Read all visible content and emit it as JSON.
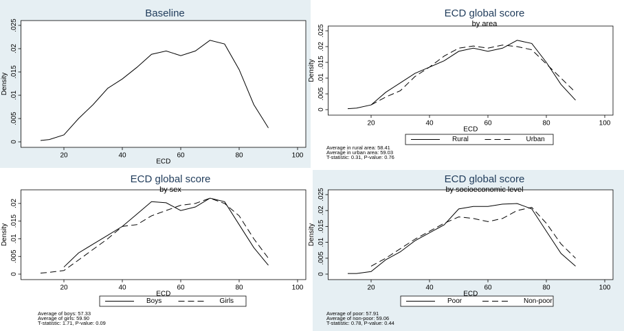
{
  "chart_data": [
    {
      "type": "line",
      "title": "Baseline",
      "x_label": "ECD",
      "y_label": "Density",
      "x": [
        12,
        15,
        20,
        25,
        30,
        35,
        40,
        45,
        50,
        55,
        60,
        65,
        70,
        75,
        80,
        85,
        90
      ],
      "series": [
        {
          "color": "#000000",
          "dash": "solid",
          "values": [
            0.0003,
            0.0005,
            0.0015,
            0.005,
            0.008,
            0.0115,
            0.0135,
            0.016,
            0.0188,
            0.0195,
            0.0185,
            0.0195,
            0.0218,
            0.021,
            0.0155,
            0.008,
            0.003
          ]
        }
      ],
      "xlim": [
        10,
        100
      ],
      "xticks": [
        20,
        40,
        60,
        80,
        100
      ],
      "ylim": [
        0,
        0.025
      ],
      "yticks": [
        {
          "value": 0,
          "label": "0"
        },
        {
          "value": 0.005,
          "label": ".005"
        },
        {
          "value": 0.01,
          "label": ".01"
        },
        {
          "value": 0.015,
          "label": ".015"
        },
        {
          "value": 0.02,
          "label": ".02"
        },
        {
          "value": 0.025,
          "label": ".025"
        }
      ]
    },
    {
      "type": "line",
      "title": "ECD global score",
      "subtitle": "by area",
      "x_label": "ECD",
      "y_label": "Density",
      "x": [
        12,
        15,
        20,
        25,
        30,
        35,
        40,
        45,
        50,
        55,
        60,
        65,
        70,
        75,
        80,
        85,
        90
      ],
      "series": [
        {
          "name": "Rural",
          "color": "#000000",
          "dash": "solid",
          "values": [
            0.0003,
            0.0005,
            0.0015,
            0.0055,
            0.0085,
            0.0115,
            0.0135,
            0.0155,
            0.0185,
            0.0195,
            0.0185,
            0.0195,
            0.022,
            0.021,
            0.015,
            0.008,
            0.003
          ]
        },
        {
          "name": "Urban",
          "color": "#000000",
          "dash": "dashed",
          "values": [
            null,
            null,
            0.0015,
            0.004,
            0.006,
            0.0105,
            0.0135,
            0.017,
            0.0195,
            0.0202,
            0.0195,
            0.0205,
            0.02,
            0.019,
            0.0145,
            0.01,
            0.0055
          ]
        }
      ],
      "xlim": [
        10,
        100
      ],
      "xticks": [
        20,
        40,
        60,
        80,
        100
      ],
      "ylim": [
        0,
        0.025
      ],
      "yticks": [
        {
          "value": 0,
          "label": "0"
        },
        {
          "value": 0.005,
          "label": ".005"
        },
        {
          "value": 0.01,
          "label": ".01"
        },
        {
          "value": 0.015,
          "label": ".015"
        },
        {
          "value": 0.02,
          "label": ".02"
        },
        {
          "value": 0.025,
          "label": ".025"
        }
      ],
      "notes": [
        "Average in rural area: 58.41",
        "Average in urban area: 59.03",
        "T-statistic: 0.31, P-value: 0.76"
      ]
    },
    {
      "type": "line",
      "title": "ECD global score",
      "subtitle": "by sex",
      "x_label": "ECD",
      "y_label": "Density",
      "x": [
        12,
        15,
        20,
        25,
        30,
        35,
        40,
        45,
        50,
        55,
        60,
        65,
        70,
        75,
        80,
        85,
        90
      ],
      "series": [
        {
          "name": "Boys",
          "color": "#000000",
          "dash": "solid",
          "values": [
            null,
            null,
            0.002,
            0.006,
            0.0085,
            0.011,
            0.0135,
            0.017,
            0.0205,
            0.0202,
            0.018,
            0.019,
            0.0215,
            0.0205,
            0.014,
            0.0075,
            0.0025
          ]
        },
        {
          "name": "Girls",
          "color": "#000000",
          "dash": "dashed",
          "values": [
            0.0003,
            0.0005,
            0.001,
            0.004,
            0.007,
            0.01,
            0.0135,
            0.014,
            0.0165,
            0.018,
            0.0195,
            0.02,
            0.0215,
            0.02,
            0.0165,
            0.01,
            0.0045
          ]
        }
      ],
      "xlim": [
        10,
        100
      ],
      "xticks": [
        20,
        40,
        60,
        80,
        100
      ],
      "ylim": [
        0,
        0.0225
      ],
      "yticks": [
        {
          "value": 0,
          "label": "0"
        },
        {
          "value": 0.005,
          "label": ".005"
        },
        {
          "value": 0.01,
          "label": ".01"
        },
        {
          "value": 0.015,
          "label": ".015"
        },
        {
          "value": 0.02,
          "label": ".02"
        }
      ],
      "notes": [
        "Average of boys: 57.33",
        "Average of girls: 59.90",
        "T-statistic: 1.71, P-value: 0.09"
      ]
    },
    {
      "type": "line",
      "title": "ECD global score",
      "subtitle": "by socioeconomic level",
      "x_label": "ECD",
      "y_label": "Density",
      "x": [
        12,
        15,
        20,
        25,
        30,
        35,
        40,
        45,
        50,
        55,
        60,
        65,
        70,
        75,
        80,
        85,
        90
      ],
      "series": [
        {
          "name": "Poor",
          "color": "#000000",
          "dash": "solid",
          "values": [
            0.0002,
            0.0002,
            0.0008,
            0.0045,
            0.007,
            0.0105,
            0.013,
            0.0155,
            0.0205,
            0.0213,
            0.0213,
            0.022,
            0.0222,
            0.0205,
            0.0135,
            0.0065,
            0.0025
          ]
        },
        {
          "name": "Non-poor",
          "color": "#000000",
          "dash": "dashed",
          "values": [
            null,
            null,
            0.0025,
            0.005,
            0.008,
            0.011,
            0.0135,
            0.016,
            0.018,
            0.0175,
            0.0165,
            0.0175,
            0.02,
            0.021,
            0.016,
            0.0095,
            0.005
          ]
        }
      ],
      "xlim": [
        10,
        100
      ],
      "xticks": [
        20,
        40,
        60,
        80,
        100
      ],
      "ylim": [
        0,
        0.025
      ],
      "yticks": [
        {
          "value": 0,
          "label": "0"
        },
        {
          "value": 0.005,
          "label": ".005"
        },
        {
          "value": 0.01,
          "label": ".01"
        },
        {
          "value": 0.015,
          "label": ".015"
        },
        {
          "value": 0.02,
          "label": ".02"
        },
        {
          "value": 0.025,
          "label": ".025"
        }
      ],
      "notes": [
        "Average of poor: 57.91",
        "Average of non-poor: 59.06",
        "T-statistic: 0.78, P-value: 0.44"
      ]
    }
  ]
}
